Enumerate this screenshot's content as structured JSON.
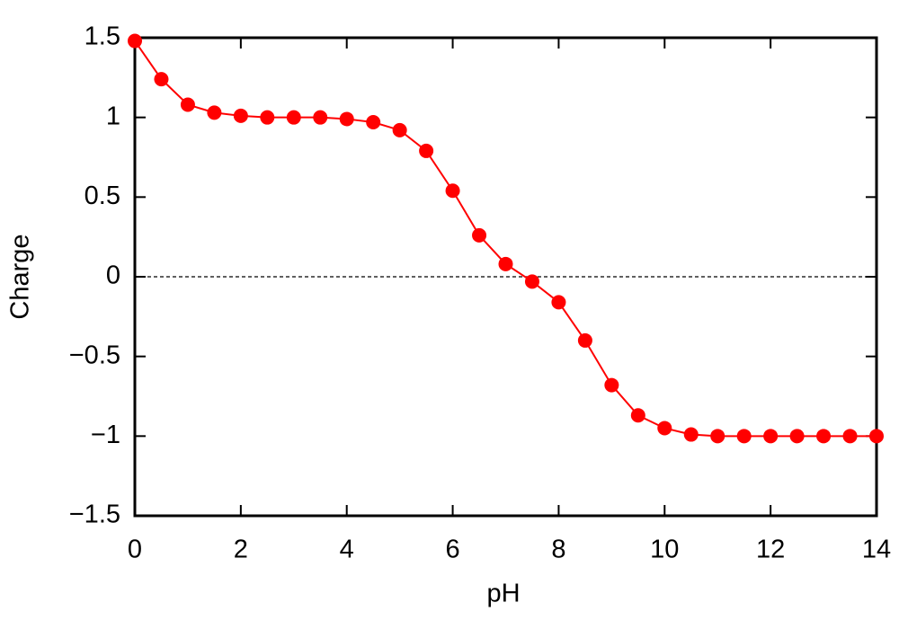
{
  "chart_data": {
    "type": "line",
    "marker": "circle",
    "color": "#ff0000",
    "x_label": "pH",
    "y_label": "Charge",
    "x": [
      0,
      0.5,
      1,
      1.5,
      2,
      2.5,
      3,
      3.5,
      4,
      4.5,
      5,
      5.5,
      6,
      6.5,
      7,
      7.5,
      8,
      8.5,
      9,
      9.5,
      10,
      10.5,
      11,
      11.5,
      12,
      12.5,
      13,
      13.5,
      14
    ],
    "values": [
      1.48,
      1.24,
      1.08,
      1.03,
      1.01,
      1.0,
      1.0,
      1.0,
      0.99,
      0.97,
      0.92,
      0.79,
      0.54,
      0.26,
      0.08,
      -0.03,
      -0.16,
      -0.4,
      -0.68,
      -0.87,
      -0.95,
      -0.99,
      -1.0,
      -1.0,
      -1.0,
      -1.0,
      -1.0,
      -1.0,
      -1.0
    ],
    "xlim": [
      0,
      14
    ],
    "xticks": [
      0,
      2,
      4,
      6,
      8,
      10,
      12,
      14
    ],
    "ylim": [
      -1.5,
      1.5
    ],
    "yticks": [
      {
        "value": -1.5,
        "label": "−1.5"
      },
      {
        "value": -1,
        "label": "−1"
      },
      {
        "value": -0.5,
        "label": "−0.5"
      },
      0,
      0.5,
      1,
      1.5
    ],
    "reference_line": {
      "y": 0,
      "style": "dashed"
    },
    "grid": false
  }
}
